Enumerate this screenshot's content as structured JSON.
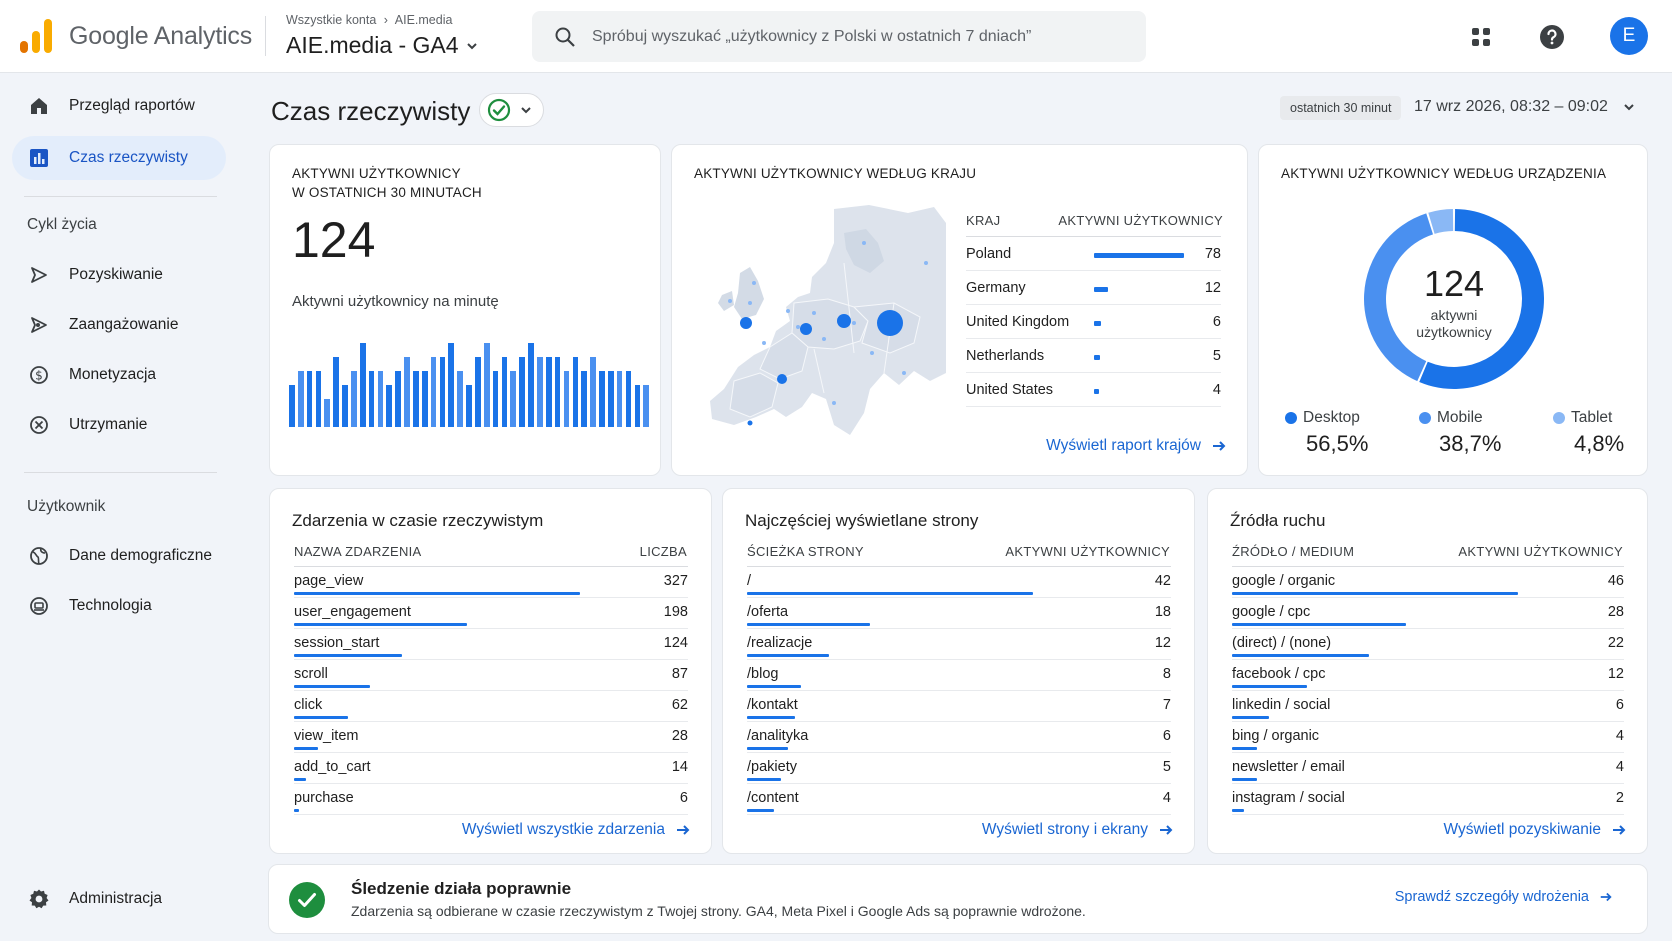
{
  "header": {
    "brand_name": "Google Analytics",
    "breadcrumb": [
      "Wszystkie konta",
      "AIE.media"
    ],
    "property": "AIE.media - GA4",
    "search_placeholder": "Spróbuj wyszukać „użytkownicy z Polski w ostatnich 7 dniach”",
    "avatar_initial": "E",
    "icons": [
      "apps-grid-icon",
      "help-icon"
    ]
  },
  "sidebar": {
    "items": [
      {
        "label": "Przegląd raportów",
        "icon": "home-icon"
      },
      {
        "label": "Czas rzeczywisty",
        "icon": "bar-chart-icon"
      }
    ],
    "section_lifecycle": "Cykl życia",
    "lifecycle": [
      {
        "label": "Pozyskiwanie",
        "icon": "acquisition-icon"
      },
      {
        "label": "Zaangażowanie",
        "icon": "engagement-icon"
      },
      {
        "label": "Monetyzacja",
        "icon": "dollar-icon"
      },
      {
        "label": "Utrzymanie",
        "icon": "retention-icon"
      }
    ],
    "section_user": "Użytkownik",
    "user": [
      {
        "label": "Dane demograficzne",
        "icon": "globe-icon"
      },
      {
        "label": "Technologia",
        "icon": "device-icon"
      }
    ],
    "admin": {
      "label": "Administracja",
      "icon": "gear-icon"
    }
  },
  "page": {
    "title": "Czas rzeczywisty",
    "time_chip": "ostatnich 30 minut",
    "date_range": "17 wrz 2026, 08:32 – 09:02"
  },
  "active_users": {
    "title_line1": "AKTYWNI UŻYTKOWNICY",
    "title_line2": "W OSTATNICH 30 MINUTACH",
    "value": "124",
    "per_minute_label": "Aktywni użytkownicy na minutę",
    "per_minute": [
      3,
      4,
      4,
      4,
      2,
      5,
      3,
      4,
      6,
      4,
      4,
      3,
      4,
      5,
      4,
      4,
      5,
      5,
      6,
      4,
      3,
      5,
      6,
      4,
      5,
      4,
      5,
      6,
      5,
      5,
      5,
      4,
      5,
      4,
      5,
      4,
      4,
      4,
      4,
      3,
      3
    ]
  },
  "countries": {
    "title": "AKTYWNI UŻYTKOWNICY WEDŁUG KRAJU",
    "col_country": "KRAJ",
    "col_users": "AKTYWNI UŻYTKOWNICY",
    "rows": [
      {
        "name": "Poland",
        "value": 78
      },
      {
        "name": "Germany",
        "value": 12
      },
      {
        "name": "United Kingdom",
        "value": 6
      },
      {
        "name": "Netherlands",
        "value": 5
      },
      {
        "name": "United States",
        "value": 4
      }
    ],
    "link": "Wyświetl raport krajów"
  },
  "devices": {
    "title": "AKTYWNI UŻYTKOWNICY WEDŁUG URZĄDZENIA",
    "center_value": "124",
    "center_label1": "aktywni",
    "center_label2": "użytkownicy",
    "items": [
      {
        "name": "Desktop",
        "value": "56,5%",
        "share": 56.5,
        "color": "#1a73e8"
      },
      {
        "name": "Mobile",
        "value": "38,7%",
        "share": 38.7,
        "color": "#4a90f0"
      },
      {
        "name": "Tablet",
        "value": "4,8%",
        "share": 4.8,
        "color": "#8ab8f5"
      }
    ]
  },
  "events": {
    "title": "Zdarzenia w czasie rzeczywistym",
    "col_name": "NAZWA ZDARZENIA",
    "col_count": "LICZBA",
    "rows": [
      {
        "name": "page_view",
        "value": 327
      },
      {
        "name": "user_engagement",
        "value": 198
      },
      {
        "name": "session_start",
        "value": 124
      },
      {
        "name": "scroll",
        "value": 87
      },
      {
        "name": "click",
        "value": 62
      },
      {
        "name": "view_item",
        "value": 28
      },
      {
        "name": "add_to_cart",
        "value": 14
      },
      {
        "name": "purchase",
        "value": 6
      }
    ],
    "link": "Wyświetl wszystkie zdarzenia"
  },
  "pages": {
    "title": "Najczęściej wyświetlane strony",
    "col_path": "ŚCIEŻKA STRONY",
    "col_users": "AKTYWNI UŻYTKOWNICY",
    "rows": [
      {
        "name": "/",
        "value": 42
      },
      {
        "name": "/oferta",
        "value": 18
      },
      {
        "name": "/realizacje",
        "value": 12
      },
      {
        "name": "/blog",
        "value": 8
      },
      {
        "name": "/kontakt",
        "value": 7
      },
      {
        "name": "/analityka",
        "value": 6
      },
      {
        "name": "/pakiety",
        "value": 5
      },
      {
        "name": "/content",
        "value": 4
      }
    ],
    "link": "Wyświetl strony i ekrany"
  },
  "sources": {
    "title": "Źródła ruchu",
    "col_source": "ŹRÓDŁO / MEDIUM",
    "col_users": "AKTYWNI UŻYTKOWNICY",
    "rows": [
      {
        "name": "google / organic",
        "value": 46
      },
      {
        "name": "google / cpc",
        "value": 28
      },
      {
        "name": "(direct) / (none)",
        "value": 22
      },
      {
        "name": "facebook / cpc",
        "value": 12
      },
      {
        "name": "linkedin / social",
        "value": 6
      },
      {
        "name": "bing / organic",
        "value": 4
      },
      {
        "name": "newsletter / email",
        "value": 4
      },
      {
        "name": "instagram / social",
        "value": 2
      }
    ],
    "link": "Wyświetl pozyskiwanie"
  },
  "banner": {
    "title": "Śledzenie działa poprawnie",
    "text": "Zdarzenia są odbierane w czasie rzeczywistym z Twojej strony. GA4, Meta Pixel i Google Ads są poprawnie wdrożone.",
    "link": "Sprawdź szczegóły wdrożenia",
    "icon": "check-circle-icon"
  },
  "colors": {
    "accent": "#1a73e8",
    "success": "#1e8e3e",
    "orange": "#f9ab00",
    "orange_dark": "#e37400"
  }
}
